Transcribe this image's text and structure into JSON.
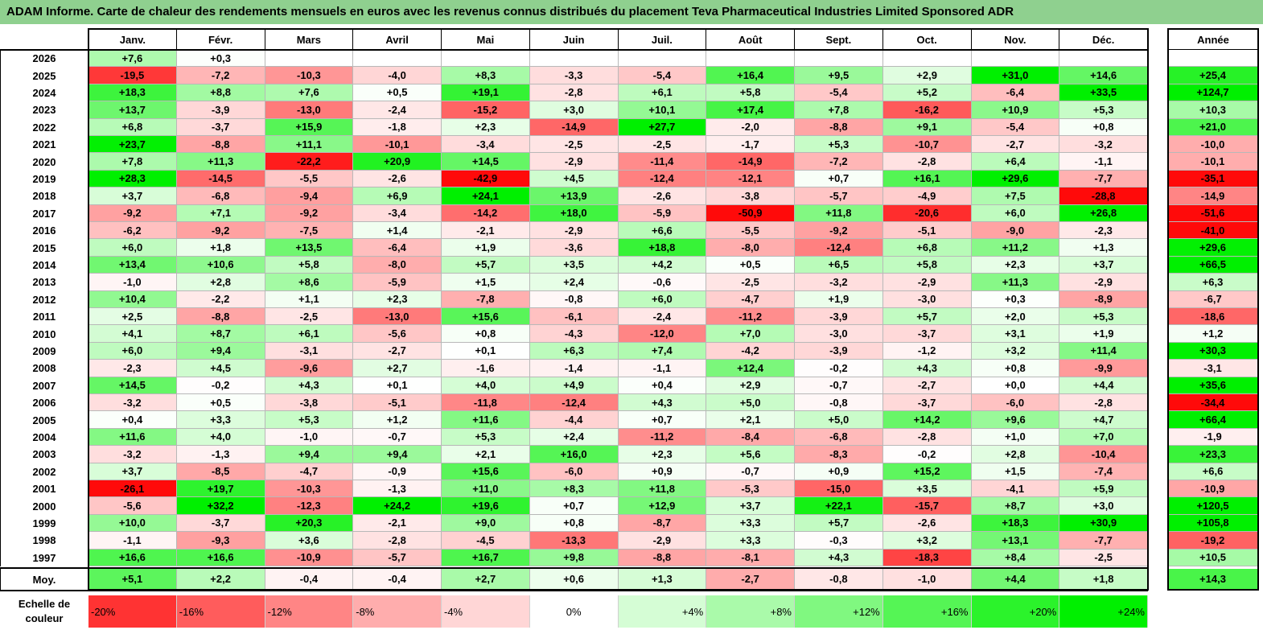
{
  "title": "ADAM Informe. Carte de chaleur des rendements mensuels en euros avec les revenus connus distribués du placement Teva Pharmaceutical Industries Limited Sponsored ADR",
  "chart_data": {
    "type": "heatmap",
    "title": "ADAM Informe. Carte de chaleur des rendements mensuels en euros avec les revenus connus distribués du placement Teva Pharmaceutical Industries Limited Sponsored ADR",
    "columns": [
      "Janv.",
      "Févr.",
      "Mars",
      "Avril",
      "Mai",
      "Juin",
      "Juil.",
      "Août",
      "Sept.",
      "Oct.",
      "Nov.",
      "Déc."
    ],
    "year_column": "Année",
    "rows": [
      {
        "year": "2026",
        "months": [
          "+7,6",
          "+0,3",
          "",
          "",
          "",
          "",
          "",
          "",
          "",
          "",
          "",
          ""
        ],
        "annual": ""
      },
      {
        "year": "2025",
        "months": [
          "-19,5",
          "-7,2",
          "-10,3",
          "-4,0",
          "+8,3",
          "-3,3",
          "-5,4",
          "+16,4",
          "+9,5",
          "+2,9",
          "+31,0",
          "+14,6"
        ],
        "annual": "+25,4"
      },
      {
        "year": "2024",
        "months": [
          "+18,3",
          "+8,8",
          "+7,6",
          "+0,5",
          "+19,1",
          "-2,8",
          "+6,1",
          "+5,8",
          "-5,4",
          "+5,2",
          "-6,4",
          "+33,5"
        ],
        "annual": "+124,7"
      },
      {
        "year": "2023",
        "months": [
          "+13,7",
          "-3,9",
          "-13,0",
          "-2,4",
          "-15,2",
          "+3,0",
          "+10,1",
          "+17,4",
          "+7,8",
          "-16,2",
          "+10,9",
          "+5,3"
        ],
        "annual": "+10,3"
      },
      {
        "year": "2022",
        "months": [
          "+6,8",
          "-3,7",
          "+15,9",
          "-1,8",
          "+2,3",
          "-14,9",
          "+27,7",
          "-2,0",
          "-8,8",
          "+9,1",
          "-5,4",
          "+0,8"
        ],
        "annual": "+21,0"
      },
      {
        "year": "2021",
        "months": [
          "+23,7",
          "-8,8",
          "+11,1",
          "-10,1",
          "-3,4",
          "-2,5",
          "-2,5",
          "-1,7",
          "+5,3",
          "-10,7",
          "-2,7",
          "-3,2"
        ],
        "annual": "-10,0"
      },
      {
        "year": "2020",
        "months": [
          "+7,8",
          "+11,3",
          "-22,2",
          "+20,9",
          "+14,5",
          "-2,9",
          "-11,4",
          "-14,9",
          "-7,2",
          "-2,8",
          "+6,4",
          "-1,1"
        ],
        "annual": "-10,1"
      },
      {
        "year": "2019",
        "months": [
          "+28,3",
          "-14,5",
          "-5,5",
          "-2,6",
          "-42,9",
          "+4,5",
          "-12,4",
          "-12,1",
          "+0,7",
          "+16,1",
          "+29,6",
          "-7,7"
        ],
        "annual": "-35,1"
      },
      {
        "year": "2018",
        "months": [
          "+3,7",
          "-6,8",
          "-9,4",
          "+6,9",
          "+24,1",
          "+13,9",
          "-2,6",
          "-3,8",
          "-5,7",
          "-4,9",
          "+7,5",
          "-28,8"
        ],
        "annual": "-14,9"
      },
      {
        "year": "2017",
        "months": [
          "-9,2",
          "+7,1",
          "-9,2",
          "-3,4",
          "-14,2",
          "+18,0",
          "-5,9",
          "-50,9",
          "+11,8",
          "-20,6",
          "+6,0",
          "+26,8"
        ],
        "annual": "-51,6"
      },
      {
        "year": "2016",
        "months": [
          "-6,2",
          "-9,2",
          "-7,5",
          "+1,4",
          "-2,1",
          "-2,9",
          "+6,6",
          "-5,5",
          "-9,2",
          "-5,1",
          "-9,0",
          "-2,3"
        ],
        "annual": "-41,0"
      },
      {
        "year": "2015",
        "months": [
          "+6,0",
          "+1,8",
          "+13,5",
          "-6,4",
          "+1,9",
          "-3,6",
          "+18,8",
          "-8,0",
          "-12,4",
          "+6,8",
          "+11,2",
          "+1,3"
        ],
        "annual": "+29,6"
      },
      {
        "year": "2014",
        "months": [
          "+13,4",
          "+10,6",
          "+5,8",
          "-8,0",
          "+5,7",
          "+3,5",
          "+4,2",
          "+0,5",
          "+6,5",
          "+5,8",
          "+2,3",
          "+3,7"
        ],
        "annual": "+66,5"
      },
      {
        "year": "2013",
        "months": [
          "-1,0",
          "+2,8",
          "+8,6",
          "-5,9",
          "+1,5",
          "+2,4",
          "-0,6",
          "-2,5",
          "-3,2",
          "-2,9",
          "+11,3",
          "-2,9"
        ],
        "annual": "+6,3"
      },
      {
        "year": "2012",
        "months": [
          "+10,4",
          "-2,2",
          "+1,1",
          "+2,3",
          "-7,8",
          "-0,8",
          "+6,0",
          "-4,7",
          "+1,9",
          "-3,0",
          "+0,3",
          "-8,9"
        ],
        "annual": "-6,7"
      },
      {
        "year": "2011",
        "months": [
          "+2,5",
          "-8,8",
          "-2,5",
          "-13,0",
          "+15,6",
          "-6,1",
          "-2,4",
          "-11,2",
          "-3,9",
          "+5,7",
          "+2,0",
          "+5,3"
        ],
        "annual": "-18,6"
      },
      {
        "year": "2010",
        "months": [
          "+4,1",
          "+8,7",
          "+6,1",
          "-5,6",
          "+0,8",
          "-4,3",
          "-12,0",
          "+7,0",
          "-3,0",
          "-3,7",
          "+3,1",
          "+1,9"
        ],
        "annual": "+1,2"
      },
      {
        "year": "2009",
        "months": [
          "+6,0",
          "+9,4",
          "-3,1",
          "-2,7",
          "+0,1",
          "+6,3",
          "+7,4",
          "-4,2",
          "-3,9",
          "-1,2",
          "+3,2",
          "+11,4"
        ],
        "annual": "+30,3"
      },
      {
        "year": "2008",
        "months": [
          "-2,3",
          "+4,5",
          "-9,6",
          "+2,7",
          "-1,6",
          "-1,4",
          "-1,1",
          "+12,4",
          "-0,2",
          "+4,3",
          "+0,8",
          "-9,9"
        ],
        "annual": "-3,1"
      },
      {
        "year": "2007",
        "months": [
          "+14,5",
          "-0,2",
          "+4,3",
          "+0,1",
          "+4,0",
          "+4,9",
          "+0,4",
          "+2,9",
          "-0,7",
          "-2,7",
          "+0,0",
          "+4,4"
        ],
        "annual": "+35,6"
      },
      {
        "year": "2006",
        "months": [
          "-3,2",
          "+0,5",
          "-3,8",
          "-5,1",
          "-11,8",
          "-12,4",
          "+4,3",
          "+5,0",
          "-0,8",
          "-3,7",
          "-6,0",
          "-2,8"
        ],
        "annual": "-34,4"
      },
      {
        "year": "2005",
        "months": [
          "+0,4",
          "+3,3",
          "+5,3",
          "+1,2",
          "+11,6",
          "-4,4",
          "+0,7",
          "+2,1",
          "+5,0",
          "+14,2",
          "+9,6",
          "+4,7"
        ],
        "annual": "+66,4"
      },
      {
        "year": "2004",
        "months": [
          "+11,6",
          "+4,0",
          "-1,0",
          "-0,7",
          "+5,3",
          "+2,4",
          "-11,2",
          "-8,4",
          "-6,8",
          "-2,8",
          "+1,0",
          "+7,0"
        ],
        "annual": "-1,9"
      },
      {
        "year": "2003",
        "months": [
          "-3,2",
          "-1,3",
          "+9,4",
          "+9,4",
          "+2,1",
          "+16,0",
          "+2,3",
          "+5,6",
          "-8,3",
          "-0,2",
          "+2,8",
          "-10,4"
        ],
        "annual": "+23,3"
      },
      {
        "year": "2002",
        "months": [
          "+3,7",
          "-8,5",
          "-4,7",
          "-0,9",
          "+15,6",
          "-6,0",
          "+0,9",
          "-0,7",
          "+0,9",
          "+15,2",
          "+1,5",
          "-7,4"
        ],
        "annual": "+6,6"
      },
      {
        "year": "2001",
        "months": [
          "-26,1",
          "+19,7",
          "-10,3",
          "-1,3",
          "+11,0",
          "+8,3",
          "+11,8",
          "-5,3",
          "-15,0",
          "+3,5",
          "-4,1",
          "+5,9"
        ],
        "annual": "-10,9"
      },
      {
        "year": "2000",
        "months": [
          "-5,6",
          "+32,2",
          "-12,3",
          "+24,2",
          "+19,6",
          "+0,7",
          "+12,9",
          "+3,7",
          "+22,1",
          "-15,7",
          "+8,7",
          "+3,0"
        ],
        "annual": "+120,5"
      },
      {
        "year": "1999",
        "months": [
          "+10,0",
          "-3,7",
          "+20,3",
          "-2,1",
          "+9,0",
          "+0,8",
          "-8,7",
          "+3,3",
          "+5,7",
          "-2,6",
          "+18,3",
          "+30,9"
        ],
        "annual": "+105,8"
      },
      {
        "year": "1998",
        "months": [
          "-1,1",
          "-9,3",
          "+3,6",
          "-2,8",
          "-4,5",
          "-13,3",
          "-2,9",
          "+3,3",
          "-0,3",
          "+3,2",
          "+13,1",
          "-7,7"
        ],
        "annual": "-19,2"
      },
      {
        "year": "1997",
        "months": [
          "+16,6",
          "+16,6",
          "-10,9",
          "-5,7",
          "+16,7",
          "+9,8",
          "-8,8",
          "-8,1",
          "+4,3",
          "-18,3",
          "+8,4",
          "-2,5"
        ],
        "annual": "+10,5"
      }
    ],
    "average": {
      "label": "Moy.",
      "months": [
        "+5,1",
        "+2,2",
        "-0,4",
        "-0,4",
        "+2,7",
        "+0,6",
        "+1,3",
        "-2,7",
        "-0,8",
        "-1,0",
        "+4,4",
        "+1,8"
      ],
      "annual": "+14,3"
    },
    "legend": {
      "label": "Echelle de couleur",
      "items": [
        "-20%",
        "-16%",
        "-12%",
        "-8%",
        "-4%",
        "0%",
        "+4%",
        "+8%",
        "+12%",
        "+16%",
        "+20%",
        "+24%"
      ],
      "values": [
        -20,
        -16,
        -12,
        -8,
        -4,
        0,
        4,
        8,
        12,
        16,
        20,
        24
      ]
    }
  }
}
